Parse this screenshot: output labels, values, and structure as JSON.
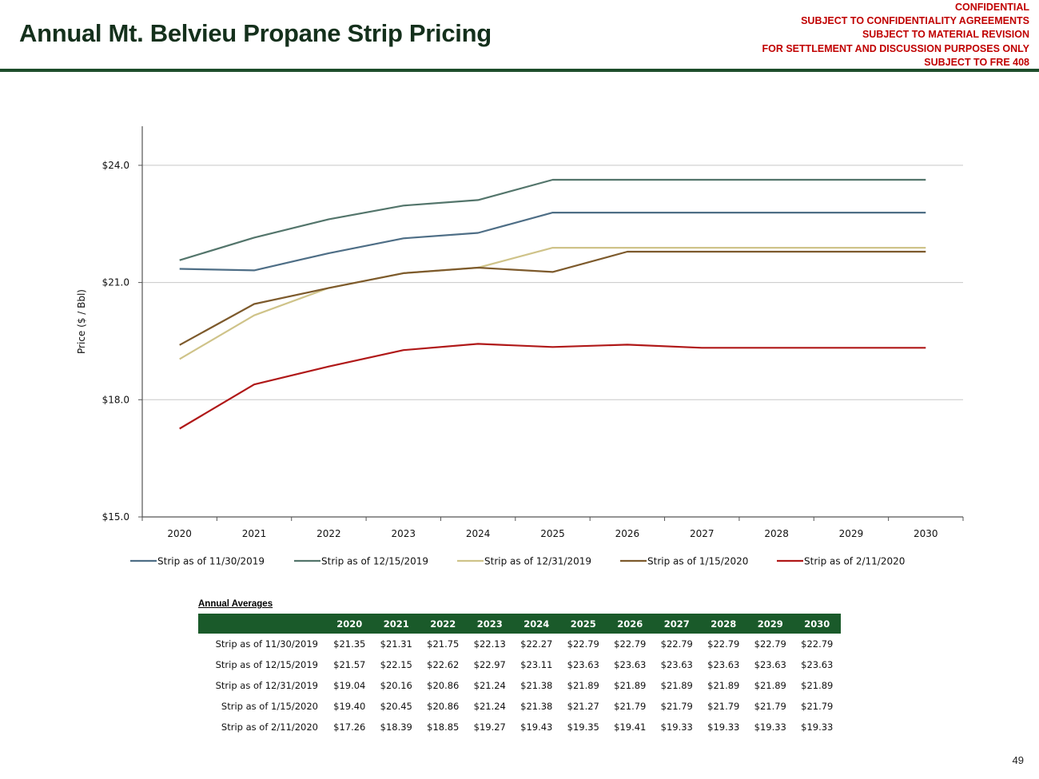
{
  "header": {
    "title": "Annual Mt. Belvieu Propane Strip Pricing",
    "confidential_lines": [
      "CONFIDENTIAL",
      "SUBJECT TO CONFIDENTIALITY AGREEMENTS",
      "SUBJECT TO MATERIAL REVISION",
      "FOR SETTLEMENT AND DISCUSSION PURPOSES ONLY",
      "SUBJECT TO FRE 408"
    ]
  },
  "chart_data": {
    "type": "line",
    "title": "",
    "xlabel": "",
    "ylabel": "Price ($ / Bbl)",
    "ylim": [
      15,
      25
    ],
    "yticks": [
      15,
      18,
      21,
      24
    ],
    "ytick_labels": [
      "$15.0",
      "$18.0",
      "$21.0",
      "$24.0"
    ],
    "grid": true,
    "legend_position": "bottom",
    "categories": [
      "2020",
      "2021",
      "2022",
      "2023",
      "2024",
      "2025",
      "2026",
      "2027",
      "2028",
      "2029",
      "2030"
    ],
    "series": [
      {
        "name": "Strip as of 11/30/2019",
        "color": "#4e6e86",
        "values": [
          21.35,
          21.31,
          21.75,
          22.13,
          22.27,
          22.79,
          22.79,
          22.79,
          22.79,
          22.79,
          22.79
        ]
      },
      {
        "name": "Strip as of 12/15/2019",
        "color": "#53756b",
        "values": [
          21.57,
          22.15,
          22.62,
          22.97,
          23.11,
          23.63,
          23.63,
          23.63,
          23.63,
          23.63,
          23.63
        ]
      },
      {
        "name": "Strip as of 12/31/2019",
        "color": "#cfc389",
        "values": [
          19.04,
          20.16,
          20.86,
          21.24,
          21.38,
          21.89,
          21.89,
          21.89,
          21.89,
          21.89,
          21.89
        ]
      },
      {
        "name": "Strip as of 1/15/2020",
        "color": "#7d5a2c",
        "values": [
          19.4,
          20.45,
          20.86,
          21.24,
          21.38,
          21.27,
          21.79,
          21.79,
          21.79,
          21.79,
          21.79
        ]
      },
      {
        "name": "Strip as of 2/11/2020",
        "color": "#b01818",
        "values": [
          17.26,
          18.39,
          18.85,
          19.27,
          19.43,
          19.35,
          19.41,
          19.33,
          19.33,
          19.33,
          19.33
        ]
      }
    ]
  },
  "table": {
    "label": "Annual Averages",
    "columns": [
      "2020",
      "2021",
      "2022",
      "2023",
      "2024",
      "2025",
      "2026",
      "2027",
      "2028",
      "2029",
      "2030"
    ],
    "rows": [
      {
        "label": "Strip as of 11/30/2019",
        "values": [
          "$21.35",
          "$21.31",
          "$21.75",
          "$22.13",
          "$22.27",
          "$22.79",
          "$22.79",
          "$22.79",
          "$22.79",
          "$22.79",
          "$22.79"
        ]
      },
      {
        "label": "Strip as of 12/15/2019",
        "values": [
          "$21.57",
          "$22.15",
          "$22.62",
          "$22.97",
          "$23.11",
          "$23.63",
          "$23.63",
          "$23.63",
          "$23.63",
          "$23.63",
          "$23.63"
        ]
      },
      {
        "label": "Strip as of 12/31/2019",
        "values": [
          "$19.04",
          "$20.16",
          "$20.86",
          "$21.24",
          "$21.38",
          "$21.89",
          "$21.89",
          "$21.89",
          "$21.89",
          "$21.89",
          "$21.89"
        ]
      },
      {
        "label": "Strip as of 1/15/2020",
        "values": [
          "$19.40",
          "$20.45",
          "$20.86",
          "$21.24",
          "$21.38",
          "$21.27",
          "$21.79",
          "$21.79",
          "$21.79",
          "$21.79",
          "$21.79"
        ]
      },
      {
        "label": "Strip as of 2/11/2020",
        "values": [
          "$17.26",
          "$18.39",
          "$18.85",
          "$19.27",
          "$19.43",
          "$19.35",
          "$19.41",
          "$19.33",
          "$19.33",
          "$19.33",
          "$19.33"
        ]
      }
    ]
  },
  "footer": {
    "page_number": "49"
  }
}
